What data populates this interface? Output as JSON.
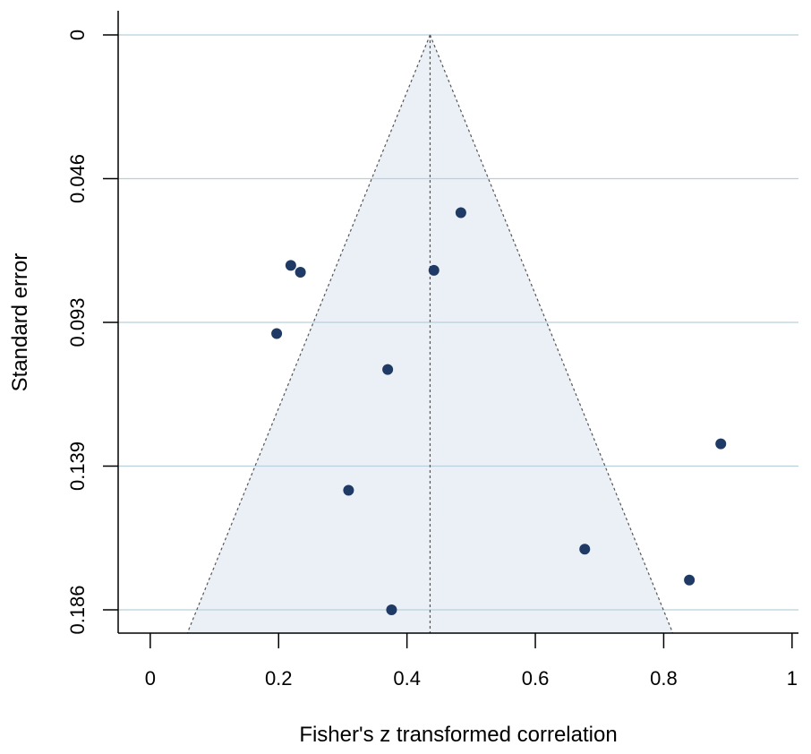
{
  "chart_data": {
    "type": "scatter",
    "subtype": "funnel plot",
    "xlabel": "Fisher's z transformed correlation",
    "ylabel": "Standard error",
    "xlim": [
      -0.05,
      1.01
    ],
    "ylim": [
      0.193,
      0
    ],
    "y_reversed": true,
    "x_ticks": [
      0,
      0.2,
      0.4,
      0.6,
      0.8,
      1
    ],
    "x_tick_labels": [
      "0",
      "0.2",
      "0.4",
      "0.6",
      "0.8",
      "1"
    ],
    "y_ticks": [
      0,
      0.0464,
      0.0928,
      0.1392,
      0.1856
    ],
    "y_tick_labels": [
      "0",
      "0.046",
      "0.093",
      "0.139",
      "0.186"
    ],
    "grid": "horizontal",
    "pooled_estimate": 0.436,
    "funnel_se_max": 0.193,
    "funnel_edges_at_max_se": [
      0.058,
      0.814
    ],
    "colors": {
      "points": "#1f3a64",
      "funnel_fill": "#ebf0f7",
      "gridline": "#b9cfdc",
      "funnel_lines": "#555555",
      "axis": "#000000"
    },
    "points": [
      {
        "x": 0.484,
        "y": 0.0574
      },
      {
        "x": 0.219,
        "y": 0.0744
      },
      {
        "x": 0.234,
        "y": 0.0766
      },
      {
        "x": 0.442,
        "y": 0.076
      },
      {
        "x": 0.197,
        "y": 0.0964
      },
      {
        "x": 0.37,
        "y": 0.108
      },
      {
        "x": 0.889,
        "y": 0.132
      },
      {
        "x": 0.309,
        "y": 0.147
      },
      {
        "x": 0.677,
        "y": 0.166
      },
      {
        "x": 0.84,
        "y": 0.176
      },
      {
        "x": 0.376,
        "y": 0.1856
      }
    ]
  }
}
